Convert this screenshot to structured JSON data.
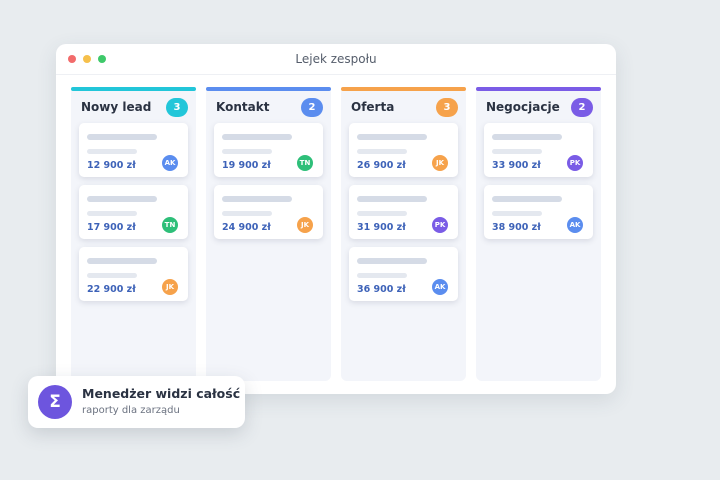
{
  "window": {
    "title": "Lejek zespołu"
  },
  "columns": [
    {
      "name": "Nowy lead",
      "count": "3",
      "color": "#22c6d9",
      "cards": [
        {
          "amount": "12 900 zł",
          "initials": "AK",
          "color": "#5b8def"
        },
        {
          "amount": "17 900 zł",
          "initials": "TN",
          "color": "#2ebf79"
        },
        {
          "amount": "22 900 zł",
          "initials": "JK",
          "color": "#f6a24b"
        }
      ]
    },
    {
      "name": "Kontakt",
      "count": "2",
      "color": "#5b8def",
      "cards": [
        {
          "amount": "19 900 zł",
          "initials": "TN",
          "color": "#2ebf79"
        },
        {
          "amount": "24 900 zł",
          "initials": "JK",
          "color": "#f6a24b"
        }
      ]
    },
    {
      "name": "Oferta",
      "count": "3",
      "color": "#f6a24b",
      "cards": [
        {
          "amount": "26 900 zł",
          "initials": "JK",
          "color": "#f6a24b"
        },
        {
          "amount": "31 900 zł",
          "initials": "PK",
          "color": "#7a5ce6"
        },
        {
          "amount": "36 900 zł",
          "initials": "AK",
          "color": "#5b8def"
        }
      ]
    },
    {
      "name": "Negocjacje",
      "count": "2",
      "color": "#7a5ce6",
      "cards": [
        {
          "amount": "33 900 zł",
          "initials": "PK",
          "color": "#7a5ce6"
        },
        {
          "amount": "38 900 zł",
          "initials": "AK",
          "color": "#5b8def"
        }
      ]
    }
  ],
  "badge": {
    "icon": "Σ",
    "title": "Menedżer widzi całość",
    "subtitle": "raporty dla zarządu"
  }
}
